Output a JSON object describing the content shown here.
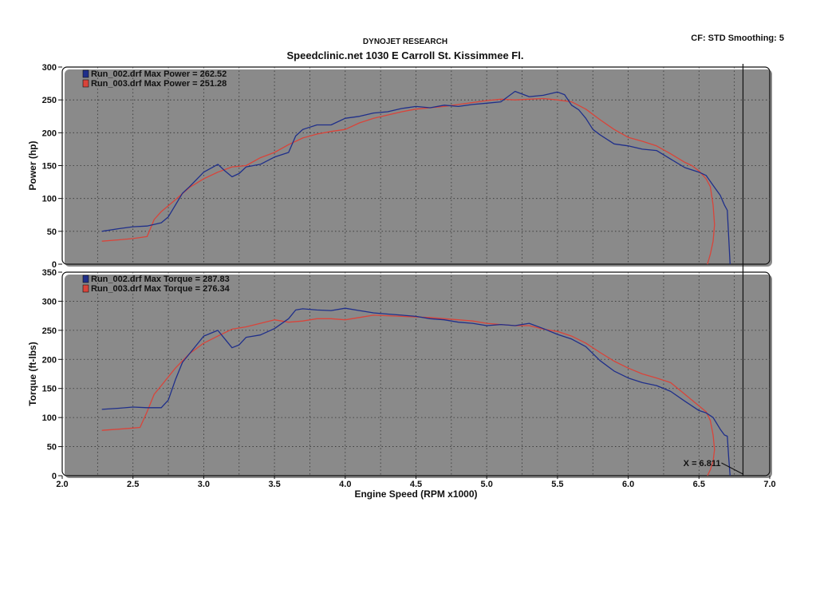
{
  "header": {
    "company": "DYNOJET RESEARCH",
    "location": "Speedclinic.net 1030 E Carroll St. Kissimmee Fl.",
    "settings": "CF: STD  Smoothing: 5"
  },
  "colors": {
    "run_002": "#1f2f8a",
    "run_003": "#d9443a"
  },
  "chart_data": [
    {
      "type": "line",
      "ylabel": "Power (hp)",
      "xlabel": "",
      "xlim": [
        2.0,
        7.0
      ],
      "ylim": [
        0,
        300
      ],
      "yticks": [
        "0",
        "50",
        "100",
        "150",
        "200",
        "250",
        "300"
      ],
      "grid": true,
      "legend": "top-left",
      "legend_entries": [
        "Run_002.drf Max Power = 262.52",
        "Run_003.drf Max Power = 251.28"
      ],
      "cursor_x": 6.811,
      "series": [
        {
          "name": "Run_002.drf",
          "color": "#1f2f8a",
          "x": [
            2.28,
            2.4,
            2.5,
            2.6,
            2.7,
            2.75,
            2.8,
            2.85,
            2.9,
            3.0,
            3.05,
            3.1,
            3.15,
            3.2,
            3.25,
            3.3,
            3.35,
            3.4,
            3.5,
            3.6,
            3.65,
            3.7,
            3.8,
            3.9,
            4.0,
            4.1,
            4.2,
            4.3,
            4.4,
            4.5,
            4.6,
            4.7,
            4.8,
            4.9,
            5.0,
            5.1,
            5.2,
            5.3,
            5.4,
            5.5,
            5.55,
            5.6,
            5.65,
            5.7,
            5.75,
            5.8,
            5.9,
            6.0,
            6.1,
            6.2,
            6.3,
            6.4,
            6.5,
            6.55,
            6.6,
            6.65,
            6.68,
            6.7,
            6.71,
            6.72
          ],
          "y": [
            50,
            54,
            57,
            58,
            63,
            72,
            90,
            108,
            118,
            140,
            146,
            152,
            142,
            133,
            138,
            148,
            150,
            152,
            163,
            170,
            195,
            205,
            212,
            212,
            222,
            225,
            230,
            232,
            237,
            240,
            238,
            242,
            240,
            243,
            245,
            247,
            263,
            255,
            257,
            262,
            258,
            242,
            235,
            222,
            205,
            197,
            183,
            180,
            175,
            173,
            160,
            147,
            140,
            135,
            120,
            105,
            90,
            82,
            40,
            0
          ]
        },
        {
          "name": "Run_003.drf",
          "color": "#d9443a",
          "x": [
            2.28,
            2.4,
            2.5,
            2.6,
            2.65,
            2.7,
            2.8,
            2.9,
            3.0,
            3.1,
            3.2,
            3.3,
            3.4,
            3.5,
            3.6,
            3.7,
            3.8,
            3.9,
            4.0,
            4.1,
            4.2,
            4.3,
            4.4,
            4.5,
            4.6,
            4.7,
            4.8,
            4.9,
            5.0,
            5.1,
            5.2,
            5.3,
            5.4,
            5.5,
            5.6,
            5.7,
            5.8,
            5.9,
            6.0,
            6.1,
            6.2,
            6.3,
            6.4,
            6.45,
            6.5,
            6.55,
            6.58,
            6.6,
            6.61,
            6.6,
            6.58,
            6.56
          ],
          "y": [
            35,
            37,
            39,
            42,
            68,
            80,
            98,
            117,
            130,
            140,
            148,
            150,
            162,
            170,
            182,
            192,
            198,
            202,
            205,
            215,
            222,
            227,
            232,
            236,
            238,
            240,
            243,
            246,
            249,
            251,
            250,
            251,
            252,
            250,
            247,
            236,
            220,
            205,
            193,
            187,
            180,
            168,
            155,
            150,
            142,
            130,
            118,
            90,
            60,
            35,
            15,
            0
          ]
        }
      ]
    },
    {
      "type": "line",
      "ylabel": "Torque (ft-lbs)",
      "xlabel": "Engine Speed (RPM x1000)",
      "xlim": [
        2.0,
        7.0
      ],
      "ylim": [
        0,
        350
      ],
      "xticks": [
        "2.0",
        "2.5",
        "3.0",
        "3.5",
        "4.0",
        "4.5",
        "5.0",
        "5.5",
        "6.0",
        "6.5",
        "7.0"
      ],
      "yticks": [
        "0",
        "50",
        "100",
        "150",
        "200",
        "250",
        "300",
        "350"
      ],
      "grid": true,
      "legend": "top-left",
      "legend_entries": [
        "Run_002.drf Max Torque = 287.83",
        "Run_003.drf Max Torque = 276.34"
      ],
      "cursor_x": 6.811,
      "cursor_label": "X = 6.811",
      "series": [
        {
          "name": "Run_002.drf",
          "color": "#1f2f8a",
          "x": [
            2.28,
            2.4,
            2.5,
            2.6,
            2.7,
            2.75,
            2.8,
            2.85,
            2.9,
            3.0,
            3.05,
            3.1,
            3.15,
            3.2,
            3.25,
            3.3,
            3.4,
            3.5,
            3.6,
            3.65,
            3.7,
            3.8,
            3.9,
            4.0,
            4.1,
            4.2,
            4.3,
            4.4,
            4.5,
            4.6,
            4.7,
            4.8,
            4.9,
            5.0,
            5.1,
            5.2,
            5.3,
            5.4,
            5.5,
            5.6,
            5.7,
            5.8,
            5.9,
            6.0,
            6.1,
            6.2,
            6.3,
            6.4,
            6.5,
            6.55,
            6.6,
            6.65,
            6.68,
            6.7,
            6.71,
            6.72
          ],
          "y": [
            114,
            116,
            118,
            117,
            117,
            130,
            165,
            195,
            210,
            240,
            245,
            250,
            235,
            220,
            225,
            238,
            242,
            253,
            270,
            285,
            287,
            285,
            284,
            288,
            284,
            280,
            278,
            276,
            274,
            270,
            268,
            264,
            262,
            258,
            260,
            258,
            262,
            253,
            243,
            235,
            222,
            198,
            180,
            168,
            160,
            155,
            145,
            128,
            112,
            108,
            100,
            80,
            70,
            68,
            30,
            0
          ]
        },
        {
          "name": "Run_003.drf",
          "color": "#d9443a",
          "x": [
            2.28,
            2.4,
            2.5,
            2.55,
            2.6,
            2.65,
            2.7,
            2.8,
            2.9,
            3.0,
            3.1,
            3.2,
            3.3,
            3.4,
            3.5,
            3.6,
            3.7,
            3.8,
            3.9,
            4.0,
            4.1,
            4.2,
            4.3,
            4.4,
            4.5,
            4.6,
            4.7,
            4.8,
            4.9,
            5.0,
            5.1,
            5.2,
            5.3,
            5.4,
            5.5,
            5.6,
            5.7,
            5.8,
            5.9,
            6.0,
            6.1,
            6.2,
            6.3,
            6.4,
            6.45,
            6.5,
            6.55,
            6.58,
            6.6,
            6.61,
            6.6,
            6.58,
            6.56
          ],
          "y": [
            78,
            80,
            82,
            83,
            110,
            140,
            155,
            185,
            210,
            228,
            240,
            252,
            256,
            262,
            268,
            264,
            266,
            270,
            270,
            268,
            272,
            276,
            275,
            274,
            273,
            272,
            270,
            268,
            266,
            262,
            260,
            258,
            258,
            252,
            248,
            240,
            228,
            212,
            197,
            185,
            175,
            168,
            160,
            140,
            130,
            120,
            110,
            95,
            70,
            45,
            25,
            10,
            0
          ]
        }
      ]
    }
  ]
}
